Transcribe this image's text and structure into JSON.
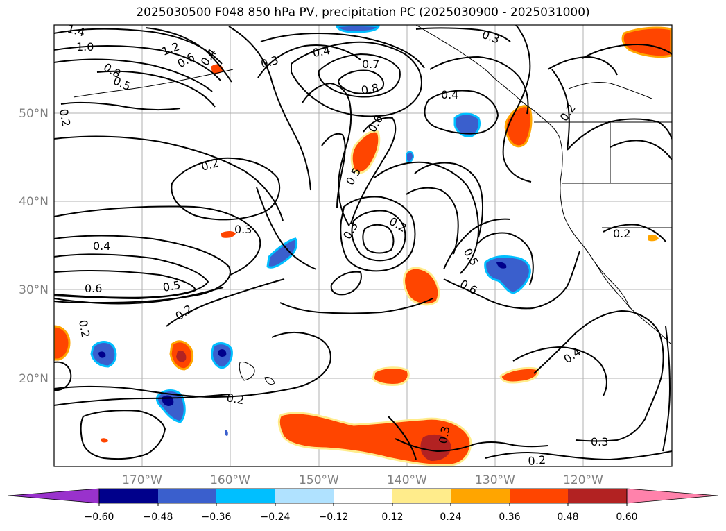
{
  "title": "2025030500 F048 850 hPa PV, precipitation PC (2025030900 - 2025031000)",
  "map": {
    "lat_labels": [
      "50°N",
      "40°N",
      "30°N",
      "20°N"
    ],
    "lon_labels": [
      "170°W",
      "160°W",
      "150°W",
      "140°W",
      "130°W",
      "120°W"
    ],
    "grid": true,
    "projection": "PlateCarree",
    "extent_lon": [
      -180,
      -110
    ],
    "extent_lat": [
      10,
      60
    ],
    "contour_color": "#000000",
    "contour_labels": [
      "1.4",
      "1.0",
      "0.8",
      "1.2",
      "0.6",
      "0.5",
      "0.4",
      "0.2",
      "0.3",
      "0.7",
      "0.8",
      "0.4",
      "0.6",
      "0.2",
      "0.4",
      "0.3",
      "0.3",
      "0.2",
      "0.5",
      "0.6",
      "0.6",
      "0.5",
      "0.2",
      "0.2",
      "0.2",
      "0.4",
      "0.3",
      "0.2",
      "0.5",
      "0.4",
      "0.3",
      "0.2",
      "0.3",
      "0.2"
    ]
  },
  "colorbar": {
    "colors": [
      "#9932cc",
      "#00008b",
      "#3a5fcd",
      "#00bfff",
      "#b0e2ff",
      "#ffffff",
      "#ffec8b",
      "#ffa500",
      "#ff4500",
      "#b22222",
      "#ff82ab"
    ],
    "tick_labels": [
      "−0.60",
      "−0.48",
      "−0.36",
      "−0.24",
      "−0.12",
      "0.12",
      "0.24",
      "0.36",
      "0.48",
      "0.60"
    ]
  }
}
